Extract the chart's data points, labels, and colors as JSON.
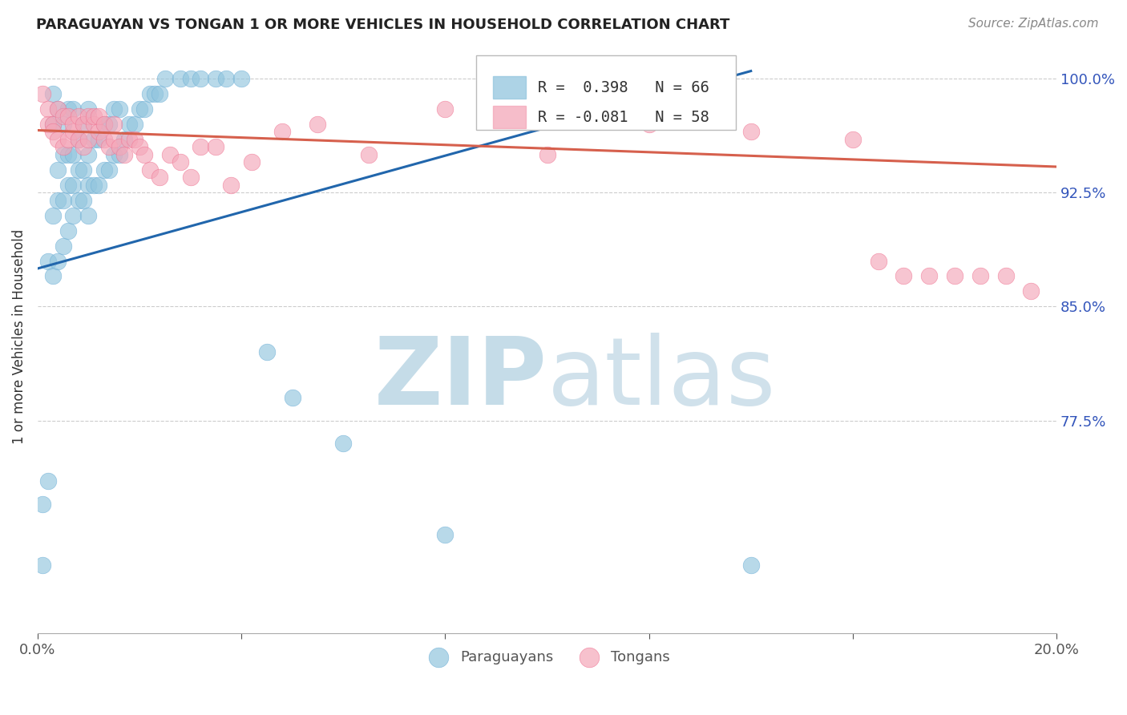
{
  "title": "PARAGUAYAN VS TONGAN 1 OR MORE VEHICLES IN HOUSEHOLD CORRELATION CHART",
  "source": "Source: ZipAtlas.com",
  "ylabel": "1 or more Vehicles in Household",
  "ytick_labels": [
    "100.0%",
    "92.5%",
    "85.0%",
    "77.5%"
  ],
  "ytick_values": [
    1.0,
    0.925,
    0.85,
    0.775
  ],
  "xlim": [
    0.0,
    0.2
  ],
  "ylim": [
    0.635,
    1.025
  ],
  "legend_blue_text": "R =  0.398   N = 66",
  "legend_pink_text": "R = -0.081   N = 58",
  "blue_color": "#92c5de",
  "pink_color": "#f4a7b9",
  "blue_edge_color": "#6baed6",
  "pink_edge_color": "#f07090",
  "blue_line_color": "#2166ac",
  "pink_line_color": "#d6604d",
  "watermark_zip_color": "#c5dce8",
  "watermark_atlas_color": "#c8dce8",
  "paraguayan_x": [
    0.001,
    0.001,
    0.002,
    0.002,
    0.003,
    0.003,
    0.003,
    0.003,
    0.004,
    0.004,
    0.004,
    0.004,
    0.005,
    0.005,
    0.005,
    0.005,
    0.006,
    0.006,
    0.006,
    0.006,
    0.007,
    0.007,
    0.007,
    0.007,
    0.008,
    0.008,
    0.008,
    0.009,
    0.009,
    0.009,
    0.01,
    0.01,
    0.01,
    0.01,
    0.011,
    0.011,
    0.012,
    0.012,
    0.013,
    0.013,
    0.014,
    0.014,
    0.015,
    0.015,
    0.016,
    0.016,
    0.017,
    0.018,
    0.019,
    0.02,
    0.021,
    0.022,
    0.023,
    0.024,
    0.025,
    0.028,
    0.03,
    0.032,
    0.035,
    0.037,
    0.04,
    0.045,
    0.05,
    0.06,
    0.08,
    0.14
  ],
  "paraguayan_y": [
    0.68,
    0.72,
    0.735,
    0.88,
    0.87,
    0.91,
    0.97,
    0.99,
    0.88,
    0.92,
    0.94,
    0.98,
    0.89,
    0.92,
    0.95,
    0.97,
    0.9,
    0.93,
    0.95,
    0.98,
    0.91,
    0.93,
    0.95,
    0.98,
    0.92,
    0.94,
    0.96,
    0.92,
    0.94,
    0.97,
    0.91,
    0.93,
    0.95,
    0.98,
    0.93,
    0.96,
    0.93,
    0.96,
    0.94,
    0.97,
    0.94,
    0.97,
    0.95,
    0.98,
    0.95,
    0.98,
    0.96,
    0.97,
    0.97,
    0.98,
    0.98,
    0.99,
    0.99,
    0.99,
    1.0,
    1.0,
    1.0,
    1.0,
    1.0,
    1.0,
    1.0,
    0.82,
    0.79,
    0.76,
    0.7,
    0.68
  ],
  "tongan_x": [
    0.001,
    0.002,
    0.002,
    0.003,
    0.003,
    0.004,
    0.004,
    0.005,
    0.005,
    0.006,
    0.006,
    0.007,
    0.007,
    0.008,
    0.008,
    0.009,
    0.009,
    0.01,
    0.01,
    0.011,
    0.011,
    0.012,
    0.012,
    0.013,
    0.013,
    0.014,
    0.015,
    0.015,
    0.016,
    0.017,
    0.018,
    0.019,
    0.02,
    0.021,
    0.022,
    0.024,
    0.026,
    0.028,
    0.03,
    0.032,
    0.035,
    0.038,
    0.042,
    0.048,
    0.055,
    0.065,
    0.08,
    0.1,
    0.12,
    0.14,
    0.16,
    0.165,
    0.17,
    0.175,
    0.18,
    0.185,
    0.19,
    0.195
  ],
  "tongan_y": [
    0.99,
    0.98,
    0.97,
    0.97,
    0.965,
    0.96,
    0.98,
    0.955,
    0.975,
    0.96,
    0.975,
    0.965,
    0.97,
    0.96,
    0.975,
    0.955,
    0.97,
    0.96,
    0.975,
    0.97,
    0.975,
    0.965,
    0.975,
    0.97,
    0.96,
    0.955,
    0.96,
    0.97,
    0.955,
    0.95,
    0.96,
    0.96,
    0.955,
    0.95,
    0.94,
    0.935,
    0.95,
    0.945,
    0.935,
    0.955,
    0.955,
    0.93,
    0.945,
    0.965,
    0.97,
    0.95,
    0.98,
    0.95,
    0.97,
    0.965,
    0.96,
    0.88,
    0.87,
    0.87,
    0.87,
    0.87,
    0.87,
    0.86
  ],
  "blue_trend_x": [
    0.0,
    0.14
  ],
  "blue_trend_y": [
    0.875,
    1.005
  ],
  "pink_trend_x": [
    0.0,
    0.2
  ],
  "pink_trend_y": [
    0.966,
    0.942
  ]
}
